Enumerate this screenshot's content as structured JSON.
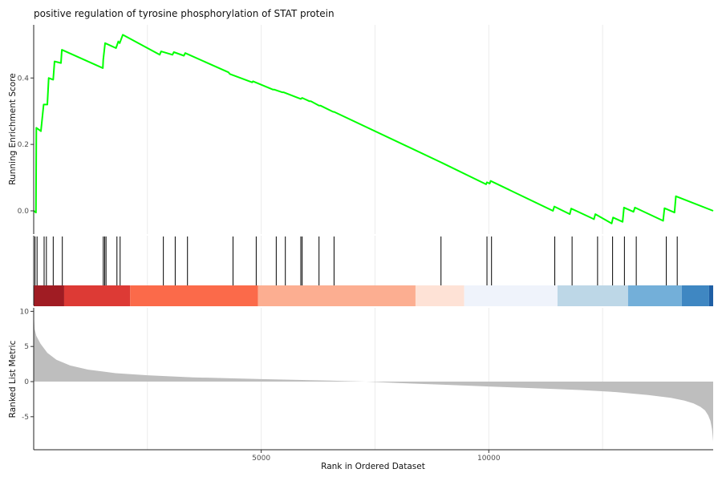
{
  "chart_data": {
    "type": "line",
    "title": "positive regulation of tyrosine phosphorylation of STAT protein",
    "xlabel": "Rank in Ordered Dataset",
    "xlim": [
      1,
      14930
    ],
    "x_ticks": [
      5000,
      10000
    ],
    "panels": {
      "running_score": {
        "ylabel": "Running Enrichment Score",
        "ylim": [
          -0.07,
          0.56
        ],
        "y_ticks": [
          0.0,
          0.2,
          0.4
        ],
        "y_tick_labels": [
          "0.0",
          "0.2",
          "0.4"
        ],
        "line_color": "#00ff00",
        "series": [
          {
            "x": [
              1,
              50,
              60,
              160,
              220,
              300,
              330,
              430,
              460,
              600,
              620,
              1520,
              1530,
              1570,
              1810,
              1860,
              1890,
              1960,
              2770,
              2800,
              3050,
              3080,
              3300,
              3330,
              4280,
              4310,
              4800,
              4820,
              5260,
              5290,
              5460,
              5490,
              5870,
              5900,
              6060,
              6090,
              6270,
              6300,
              6580,
              6600,
              8950,
              8980,
              9940,
              9960,
              10020,
              10040,
              11410,
              11440,
              11780,
              11810,
              12310,
              12340,
              12700,
              12730,
              12940,
              12970,
              13180,
              13210,
              13830,
              13860,
              14080,
              14110,
              14930
            ],
            "y": [
              0.0,
              -0.005,
              0.25,
              0.24,
              0.32,
              0.32,
              0.4,
              0.395,
              0.45,
              0.445,
              0.485,
              0.43,
              0.455,
              0.505,
              0.49,
              0.51,
              0.505,
              0.53,
              0.47,
              0.48,
              0.47,
              0.478,
              0.467,
              0.475,
              0.417,
              0.412,
              0.387,
              0.39,
              0.365,
              0.365,
              0.357,
              0.357,
              0.337,
              0.34,
              0.33,
              0.33,
              0.317,
              0.317,
              0.298,
              0.298,
              0.146,
              0.144,
              0.08,
              0.086,
              0.082,
              0.09,
              0.0,
              0.013,
              -0.01,
              0.007,
              -0.025,
              -0.01,
              -0.038,
              -0.02,
              -0.033,
              0.01,
              -0.003,
              0.01,
              -0.03,
              0.008,
              -0.005,
              0.044,
              0.0
            ]
          }
        ]
      },
      "hits": {
        "positions": [
          30,
          75,
          230,
          280,
          430,
          630,
          1530,
          1560,
          1590,
          1830,
          1900,
          2850,
          3110,
          3380,
          4380,
          4890,
          5330,
          5530,
          5870,
          5900,
          6270,
          6600,
          8950,
          9960,
          10060,
          11450,
          11830,
          12390,
          12720,
          12980,
          13240,
          13900,
          14140
        ]
      },
      "color_bar": {
        "segments": [
          {
            "start": 1,
            "end": 670,
            "color": "#a01c23"
          },
          {
            "start": 670,
            "end": 2120,
            "color": "#dd3a35"
          },
          {
            "start": 2120,
            "end": 4930,
            "color": "#fb6a4a"
          },
          {
            "start": 4930,
            "end": 8390,
            "color": "#fcae91"
          },
          {
            "start": 8390,
            "end": 9460,
            "color": "#fee2d6"
          },
          {
            "start": 9460,
            "end": 11510,
            "color": "#eff3fb"
          },
          {
            "start": 11510,
            "end": 13060,
            "color": "#bdd7e7"
          },
          {
            "start": 13060,
            "end": 14240,
            "color": "#73afd9"
          },
          {
            "start": 14240,
            "end": 14840,
            "color": "#3f87c2"
          },
          {
            "start": 14840,
            "end": 14930,
            "color": "#1f5fa5"
          }
        ]
      },
      "ranked_metric": {
        "ylabel": "Ranked List Metric",
        "ylim": [
          -9.7,
          10.5
        ],
        "y_ticks": [
          -5,
          0,
          5,
          10
        ],
        "y_tick_labels": [
          "-5",
          "0",
          "5",
          "10"
        ],
        "fill_color": "#bebebe",
        "x": [
          1,
          20,
          60,
          150,
          300,
          500,
          800,
          1200,
          1800,
          2500,
          3500,
          5000,
          6500,
          7300,
          8000,
          9000,
          10000,
          11000,
          12000,
          12800,
          13500,
          14000,
          14300,
          14500,
          14650,
          14750,
          14820,
          14870,
          14905,
          14930
        ],
        "values": [
          10.0,
          7.5,
          6.5,
          5.4,
          4.1,
          3.1,
          2.3,
          1.7,
          1.2,
          0.9,
          0.6,
          0.35,
          0.15,
          0.0,
          -0.2,
          -0.45,
          -0.7,
          -0.95,
          -1.2,
          -1.5,
          -1.9,
          -2.3,
          -2.7,
          -3.1,
          -3.6,
          -4.1,
          -4.8,
          -5.6,
          -6.8,
          -8.5
        ]
      }
    }
  }
}
